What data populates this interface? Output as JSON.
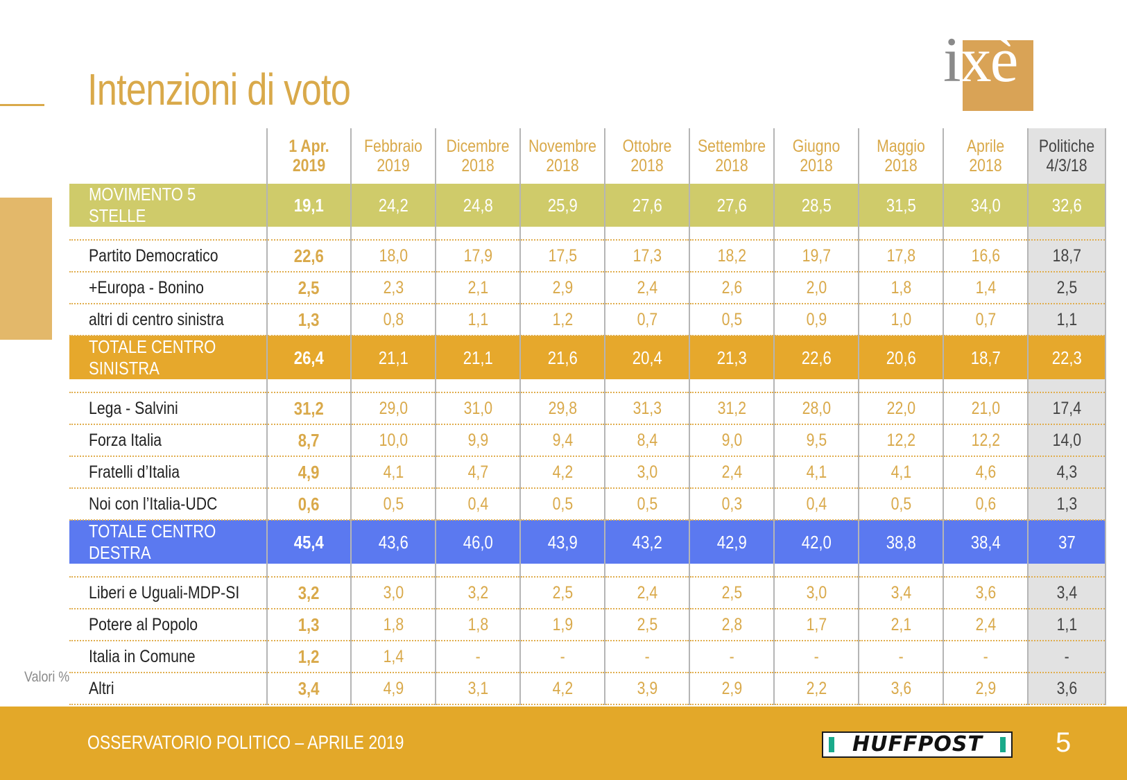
{
  "title": "Intenzioni di voto",
  "logo": "ixè",
  "note": "Valori %",
  "footer": {
    "text": "OSSERVATORIO POLITICO – APRILE 2019",
    "brand": "HUFFPOST",
    "page": "5"
  },
  "colors": {
    "accent": "#d9a94a",
    "m5s": "#cfcb6a",
    "centro_sinistra": "#e6a82c",
    "centro_destra": "#5b79f0",
    "politiche_bg": "#e2e2e2"
  },
  "chart_data": {
    "type": "table",
    "columns": [
      {
        "line1": "1 Apr.",
        "line2": "2019"
      },
      {
        "line1": "Febbraio",
        "line2": "2019"
      },
      {
        "line1": "Dicembre",
        "line2": "2018"
      },
      {
        "line1": "Novembre",
        "line2": "2018"
      },
      {
        "line1": "Ottobre",
        "line2": "2018"
      },
      {
        "line1": "Settembre",
        "line2": "2018"
      },
      {
        "line1": "Giugno",
        "line2": "2018"
      },
      {
        "line1": "Maggio",
        "line2": "2018"
      },
      {
        "line1": "Aprile",
        "line2": "2018"
      },
      {
        "line1": "Politiche",
        "line2": "4/3/18"
      }
    ],
    "rows": [
      {
        "label": "MOVIMENTO 5 STELLE",
        "kind": "m5s",
        "values": [
          "19,1",
          "24,2",
          "24,8",
          "25,9",
          "27,6",
          "27,6",
          "28,5",
          "31,5",
          "34,0",
          "32,6"
        ]
      },
      {
        "kind": "spacer"
      },
      {
        "label": "Partito Democratico",
        "kind": "row",
        "values": [
          "22,6",
          "18,0",
          "17,9",
          "17,5",
          "17,3",
          "18,2",
          "19,7",
          "17,8",
          "16,6",
          "18,7"
        ]
      },
      {
        "label": "+Europa - Bonino",
        "kind": "row",
        "values": [
          "2,5",
          "2,3",
          "2,1",
          "2,9",
          "2,4",
          "2,6",
          "2,0",
          "1,8",
          "1,4",
          "2,5"
        ]
      },
      {
        "label": "altri di centro sinistra",
        "kind": "row",
        "values": [
          "1,3",
          "0,8",
          "1,1",
          "1,2",
          "0,7",
          "0,5",
          "0,9",
          "1,0",
          "0,7",
          "1,1"
        ]
      },
      {
        "label": "TOTALE CENTRO SINISTRA",
        "kind": "sin",
        "values": [
          "26,4",
          "21,1",
          "21,1",
          "21,6",
          "20,4",
          "21,3",
          "22,6",
          "20,6",
          "18,7",
          "22,3"
        ]
      },
      {
        "kind": "spacer"
      },
      {
        "label": "Lega - Salvini",
        "kind": "row",
        "values": [
          "31,2",
          "29,0",
          "31,0",
          "29,8",
          "31,3",
          "31,2",
          "28,0",
          "22,0",
          "21,0",
          "17,4"
        ]
      },
      {
        "label": "Forza Italia",
        "kind": "row",
        "values": [
          "8,7",
          "10,0",
          "9,9",
          "9,4",
          "8,4",
          "9,0",
          "9,5",
          "12,2",
          "12,2",
          "14,0"
        ]
      },
      {
        "label": "Fratelli d’Italia",
        "kind": "row",
        "values": [
          "4,9",
          "4,1",
          "4,7",
          "4,2",
          "3,0",
          "2,4",
          "4,1",
          "4,1",
          "4,6",
          "4,3"
        ]
      },
      {
        "label": "Noi con l’Italia-UDC",
        "kind": "row",
        "values": [
          "0,6",
          "0,5",
          "0,4",
          "0,5",
          "0,5",
          "0,3",
          "0,4",
          "0,5",
          "0,6",
          "1,3"
        ]
      },
      {
        "label": "TOTALE CENTRO DESTRA",
        "kind": "des",
        "values": [
          "45,4",
          "43,6",
          "46,0",
          "43,9",
          "43,2",
          "42,9",
          "42,0",
          "38,8",
          "38,4",
          "37"
        ]
      },
      {
        "kind": "spacer"
      },
      {
        "label": "Liberi e Uguali-MDP-SI",
        "kind": "row",
        "values": [
          "3,2",
          "3,0",
          "3,2",
          "2,5",
          "2,4",
          "2,5",
          "3,0",
          "3,4",
          "3,6",
          "3,4"
        ]
      },
      {
        "label": "Potere al Popolo",
        "kind": "row",
        "values": [
          "1,3",
          "1,8",
          "1,8",
          "1,9",
          "2,5",
          "2,8",
          "1,7",
          "2,1",
          "2,4",
          "1,1"
        ]
      },
      {
        "label": "Italia in Comune",
        "kind": "row",
        "values": [
          "1,2",
          "1,4",
          "-",
          "-",
          "-",
          "-",
          "-",
          "-",
          "-",
          "-"
        ]
      },
      {
        "label": "Altri",
        "kind": "row",
        "values": [
          "3,4",
          "4,9",
          "3,1",
          "4,2",
          "3,9",
          "2,9",
          "2,2",
          "3,6",
          "2,9",
          "3,6"
        ]
      }
    ]
  }
}
